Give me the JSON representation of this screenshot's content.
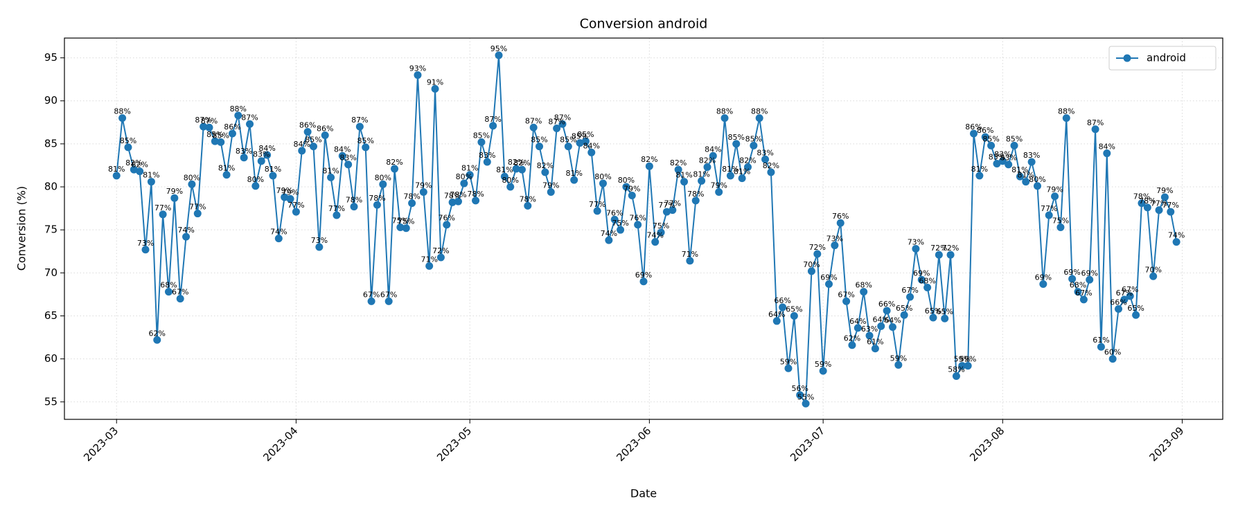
{
  "chart_data": {
    "type": "line",
    "title": "Conversion android",
    "xlabel": "Date",
    "ylabel": "Conversion (%)",
    "categories": [
      "2023-03",
      null,
      null,
      null,
      null,
      null,
      null,
      null,
      null,
      null,
      null,
      null,
      null,
      null,
      null,
      null,
      null,
      null,
      null,
      null,
      null,
      null,
      null,
      null,
      null,
      null,
      null,
      null,
      null,
      null,
      null,
      "2023-04",
      null,
      null,
      null,
      null,
      null,
      null,
      null,
      null,
      null,
      null,
      null,
      null,
      null,
      null,
      null,
      null,
      null,
      null,
      null,
      null,
      null,
      null,
      null,
      null,
      null,
      null,
      null,
      null,
      null,
      "2023-05",
      null,
      null,
      null,
      null,
      null,
      null,
      null,
      null,
      null,
      null,
      null,
      null,
      null,
      null,
      null,
      null,
      null,
      null,
      null,
      null,
      null,
      null,
      null,
      null,
      null,
      null,
      null,
      null,
      null,
      null,
      "2023-06",
      null,
      null,
      null,
      null,
      null,
      null,
      null,
      null,
      null,
      null,
      null,
      null,
      null,
      null,
      null,
      null,
      null,
      null,
      null,
      null,
      null,
      null,
      null,
      null,
      null,
      null,
      null,
      null,
      null,
      "2023-07",
      null,
      null,
      null,
      null,
      null,
      null,
      null,
      null,
      null,
      null,
      null,
      null,
      null,
      null,
      null,
      null,
      null,
      null,
      null,
      null,
      null,
      null,
      null,
      null,
      null,
      null,
      null,
      null,
      null,
      null,
      "2023-08",
      null,
      null,
      null,
      null,
      null,
      null,
      null,
      null,
      null,
      null,
      null,
      null,
      null,
      null,
      null,
      null,
      null,
      null,
      null,
      null,
      null,
      null,
      null,
      null,
      null,
      null,
      null,
      null,
      null,
      null,
      "2023-09"
    ],
    "series": [
      {
        "name": "android",
        "color": "#1f77b4",
        "values": [
          81.3,
          88.0,
          84.6,
          82.0,
          81.8,
          72.7,
          80.6,
          62.2,
          76.8,
          67.8,
          78.7,
          67.0,
          74.2,
          80.3,
          76.9,
          87.0,
          86.9,
          85.3,
          85.2,
          81.4,
          86.2,
          88.3,
          83.4,
          87.3,
          80.1,
          83.0,
          83.7,
          81.3,
          74.0,
          78.8,
          78.6,
          77.1,
          84.2,
          86.4,
          84.7,
          73.0,
          86.0,
          81.1,
          76.7,
          83.6,
          82.6,
          77.7,
          87.0,
          84.6,
          66.7,
          77.9,
          80.3,
          66.7,
          82.1,
          75.3,
          75.2,
          78.1,
          93.0,
          79.4,
          70.8,
          91.4,
          71.8,
          75.6,
          78.2,
          78.3,
          80.4,
          81.4,
          78.4,
          85.2,
          82.9,
          87.1,
          95.3,
          81.2,
          80.0,
          82.1,
          82.0,
          77.8,
          86.9,
          84.7,
          81.7,
          79.4,
          86.8,
          87.3,
          84.7,
          80.8,
          85.1,
          85.3,
          84.0,
          77.2,
          80.4,
          73.8,
          76.2,
          75.0,
          80.0,
          79.0,
          75.6,
          69.0,
          82.4,
          73.6,
          74.7,
          77.1,
          77.3,
          82.0,
          80.6,
          71.4,
          78.4,
          80.7,
          82.3,
          83.6,
          79.4,
          88.0,
          81.3,
          85.0,
          81.0,
          82.3,
          84.8,
          88.0,
          83.2,
          81.7,
          64.4,
          66.0,
          58.9,
          65.0,
          55.8,
          54.8,
          70.2,
          72.2,
          58.6,
          68.7,
          73.2,
          75.8,
          66.7,
          61.6,
          63.6,
          67.8,
          62.7,
          61.2,
          63.8,
          65.6,
          63.7,
          59.3,
          65.1,
          67.2,
          72.8,
          69.2,
          68.3,
          64.8,
          72.1,
          64.7,
          72.1,
          58.0,
          59.2,
          59.2,
          86.2,
          81.3,
          85.8,
          84.8,
          82.7,
          83.0,
          82.6,
          84.8,
          81.2,
          80.6,
          82.9,
          80.1,
          68.7,
          76.7,
          78.9,
          75.3,
          88.0,
          69.3,
          67.8,
          66.9,
          69.2,
          86.7,
          61.4,
          83.9,
          60.0,
          65.8,
          66.9,
          67.3,
          65.1,
          78.1,
          77.6,
          69.6,
          77.3,
          78.8,
          77.1,
          73.6,
          null
        ],
        "value_labels": [
          "81%",
          "88%",
          "85%",
          "82%",
          "82%",
          "73%",
          "81%",
          "62%",
          "77%",
          "68%",
          "79%",
          "67%",
          "74%",
          "80%",
          "77%",
          "87%",
          "87%",
          "85%",
          "85%",
          "81%",
          "86%",
          "88%",
          "83%",
          "87%",
          "80%",
          "83%",
          "84%",
          "81%",
          "74%",
          "79%",
          "79%",
          "77%",
          "84%",
          "86%",
          "85%",
          "73%",
          "86%",
          "81%",
          "77%",
          "84%",
          "83%",
          "78%",
          "87%",
          "85%",
          "67%",
          "78%",
          "80%",
          "67%",
          "82%",
          "75%",
          "75%",
          "78%",
          "93%",
          "79%",
          "71%",
          "91%",
          "72%",
          "76%",
          "78%",
          "78%",
          "80%",
          "81%",
          "78%",
          "85%",
          "83%",
          "87%",
          "95%",
          "81%",
          "80%",
          "82%",
          "82%",
          "78%",
          "87%",
          "85%",
          "82%",
          "79%",
          "87%",
          "87%",
          "85%",
          "81%",
          "85%",
          "85%",
          "84%",
          "77%",
          "80%",
          "74%",
          "76%",
          "75%",
          "80%",
          "79%",
          "76%",
          "69%",
          "82%",
          "74%",
          "75%",
          "77%",
          "77%",
          "82%",
          "81%",
          "71%",
          "78%",
          "81%",
          "82%",
          "84%",
          "79%",
          "88%",
          "81%",
          "85%",
          "81%",
          "82%",
          "85%",
          "88%",
          "83%",
          "82%",
          "64%",
          "66%",
          "59%",
          "65%",
          "56%",
          "55%",
          "70%",
          "72%",
          "59%",
          "69%",
          "73%",
          "76%",
          "67%",
          "62%",
          "64%",
          "68%",
          "63%",
          "61%",
          "64%",
          "66%",
          "64%",
          "59%",
          "65%",
          "67%",
          "73%",
          "69%",
          "68%",
          "65%",
          "72%",
          "65%",
          "72%",
          "58%",
          "59%",
          "59%",
          "86%",
          "81%",
          "86%",
          "85%",
          "83%",
          "83%",
          "83%",
          "85%",
          "81%",
          "81%",
          "83%",
          "80%",
          "69%",
          "77%",
          "79%",
          "75%",
          "88%",
          "69%",
          "68%",
          "67%",
          "69%",
          "87%",
          "61%",
          "84%",
          "60%",
          "66%",
          "67%",
          "67%",
          "65%",
          "78%",
          "78%",
          "70%",
          "77%",
          "79%",
          "77%",
          "74%",
          null
        ]
      }
    ],
    "ylim": [
      52.97,
      97.3
    ],
    "yticks": [
      55,
      60,
      65,
      70,
      75,
      80,
      85,
      90,
      95
    ],
    "grid": true,
    "legend": "upper right"
  }
}
